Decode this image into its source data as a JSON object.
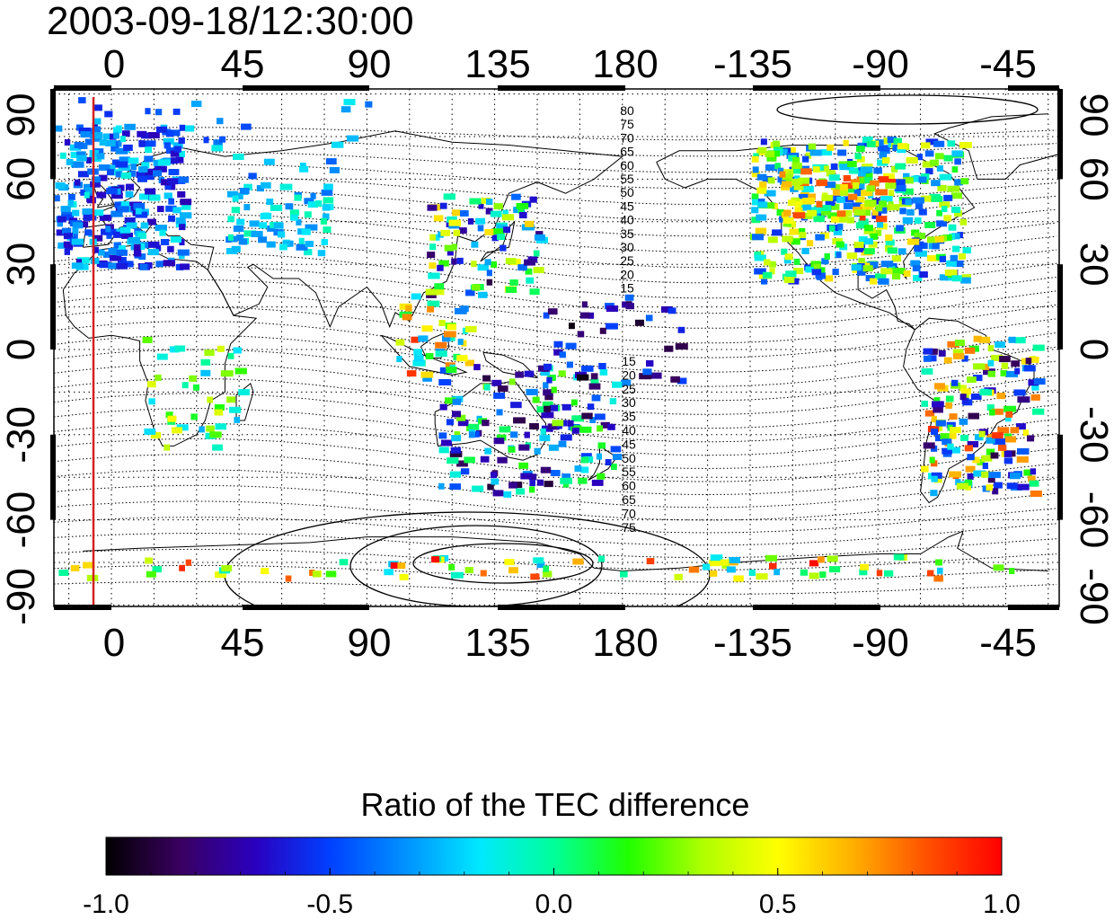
{
  "title": "2003-09-18/12:30:00",
  "map": {
    "top_lon_labels": [
      "0",
      "45",
      "90",
      "135",
      "180",
      "-135",
      "-90",
      "-45"
    ],
    "bottom_lon_labels": [
      "0",
      "45",
      "90",
      "135",
      "180",
      "-135",
      "-90",
      "-45"
    ],
    "left_lat_labels": [
      "90",
      "60",
      "30",
      "0",
      "-30",
      "-60",
      "-90"
    ],
    "right_lat_labels": [
      "90",
      "60",
      "30",
      "0",
      "-30",
      "-60",
      "-90"
    ],
    "contour_labels_north": [
      "80",
      "75",
      "70",
      "65",
      "60",
      "55",
      "50",
      "45",
      "40",
      "35",
      "30",
      "25",
      "20",
      "15"
    ],
    "contour_labels_south": [
      "15",
      "20",
      "25",
      "30",
      "35",
      "40",
      "45",
      "50",
      "55",
      "60",
      "65",
      "70",
      "75"
    ],
    "marker_line": {
      "color": "#d42020"
    }
  },
  "colorbar": {
    "title": "Ratio of the TEC difference",
    "tick_labels": [
      "-1.0",
      "-0.5",
      "0.0",
      "0.5",
      "1.0"
    ],
    "range": [
      -1.0,
      1.0
    ],
    "colors": [
      "#000000",
      "#3a0060",
      "#2a00c0",
      "#0040ff",
      "#0090ff",
      "#00e8ff",
      "#00ff9a",
      "#20ff00",
      "#b0ff00",
      "#ffff00",
      "#ffb000",
      "#ff5000",
      "#ff0000"
    ]
  }
}
